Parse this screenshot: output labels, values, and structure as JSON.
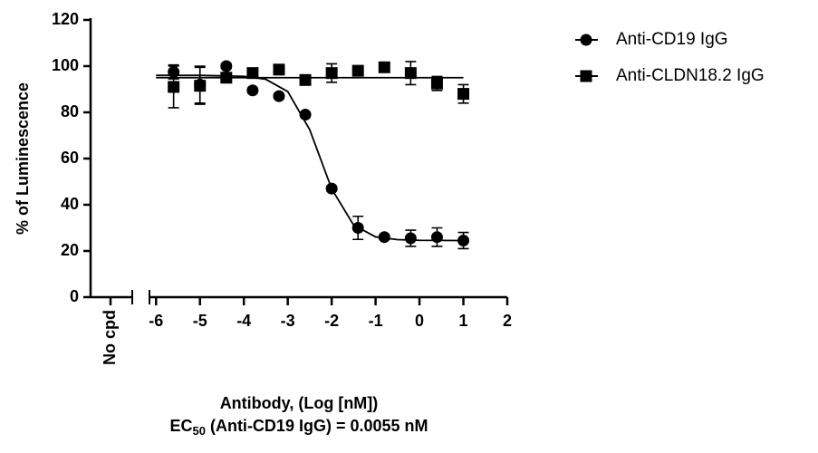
{
  "chart_data": {
    "type": "scatter",
    "ylabel": "% of Luminescence",
    "xlabel": "Antibody, (Log [nM])",
    "annotation": {
      "main": "EC",
      "sub": "50",
      "rest": " (Anti-CD19 IgG) = 0.0055 nM"
    },
    "x_categories": [
      "No cpd"
    ],
    "xlim": [
      -6.15,
      2
    ],
    "xticks": [
      -6,
      -5,
      -4,
      -3,
      -2,
      -1,
      0,
      1,
      2
    ],
    "ylim": [
      0,
      120
    ],
    "yticks": [
      0,
      20,
      40,
      60,
      80,
      100,
      120
    ],
    "series": [
      {
        "name": "Anti-CD19  IgG",
        "marker": "circle",
        "color": "#000000",
        "x": [
          -5.6,
          -5.0,
          -4.4,
          -3.8,
          -3.2,
          -2.6,
          -2.0,
          -1.4,
          -0.8,
          -0.2,
          0.4,
          1.0
        ],
        "values": [
          97.5,
          92,
          100,
          89.5,
          87,
          79,
          47,
          30,
          26,
          25.5,
          26,
          24.5
        ],
        "errors": [
          3,
          8,
          1,
          1,
          1,
          1,
          1,
          5,
          1,
          3.5,
          4,
          3.5
        ],
        "fit": {
          "x": [
            -6,
            -5,
            -4,
            -3.5,
            -3,
            -2.5,
            -2,
            -1.5,
            -1,
            -0.5,
            0,
            1
          ],
          "values": [
            96,
            96,
            95.6,
            94.3,
            89,
            72.5,
            46.9,
            31.2,
            26.1,
            24.9,
            24.6,
            24.5
          ]
        }
      },
      {
        "name": "Anti-CLDN18.2 IgG",
        "marker": "square",
        "color": "#000000",
        "x": [
          -5.6,
          -5.0,
          -4.4,
          -3.8,
          -3.2,
          -2.6,
          -2.0,
          -1.4,
          -0.8,
          -0.2,
          0.4,
          1.0
        ],
        "values": [
          91,
          91.5,
          95,
          97,
          98.5,
          94,
          97,
          98,
          99.5,
          97,
          92.5,
          88
        ],
        "errors": [
          9,
          8,
          1,
          1,
          1,
          1,
          4,
          1,
          1,
          5,
          3,
          4
        ],
        "fit": {
          "x": [
            -6,
            1
          ],
          "values": [
            95,
            95
          ]
        }
      }
    ]
  }
}
